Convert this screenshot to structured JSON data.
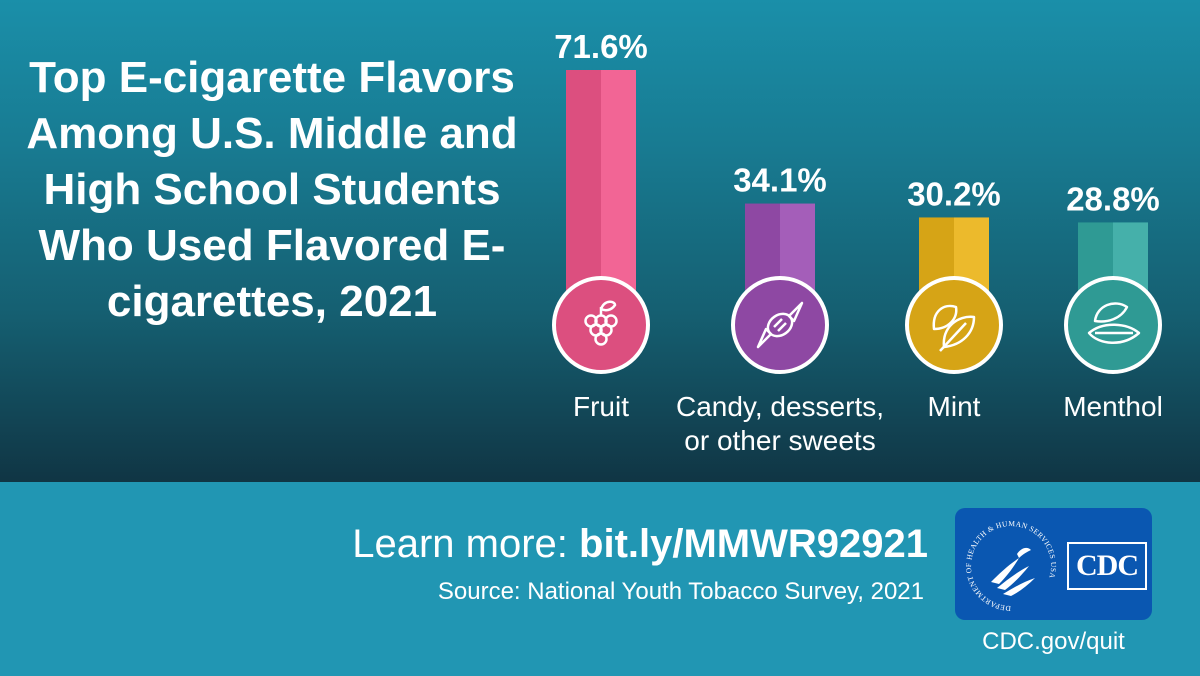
{
  "colors": {
    "fruit": "#dc4f7f",
    "candy": "#8e48a3",
    "mint": "#d6a416",
    "menthol": "#2f9a94"
  },
  "chart_data": {
    "type": "bar",
    "title": "Top E-cigarette Flavors Among U.S. Middle and High School Students Who Used Flavored E-cigarettes, 2021",
    "categories": [
      "Fruit",
      "Candy, desserts, or other sweets",
      "Mint",
      "Menthol"
    ],
    "category_lines": [
      [
        "Fruit"
      ],
      [
        "Candy, desserts,",
        "or other sweets"
      ],
      [
        "Mint"
      ],
      [
        "Menthol"
      ]
    ],
    "values": [
      71.6,
      34.1,
      30.2,
      28.8
    ],
    "value_labels": [
      "71.6%",
      "34.1%",
      "30.2%",
      "28.8%"
    ],
    "icons": [
      "grapes-icon",
      "candy-icon",
      "mint-leaves-icon",
      "menthol-leaf-icon"
    ],
    "ylim": [
      0,
      71.6
    ],
    "grid": false
  },
  "footer": {
    "learn_more_label": "Learn more:",
    "learn_more_url": "bit.ly/MMWR92921",
    "source": "Source: National Youth Tobacco Survey, 2021",
    "logo_text": "CDC",
    "seal_text": "DEPARTMENT OF HEALTH & HUMAN SERVICES USA",
    "site": "CDC.gov/quit"
  }
}
